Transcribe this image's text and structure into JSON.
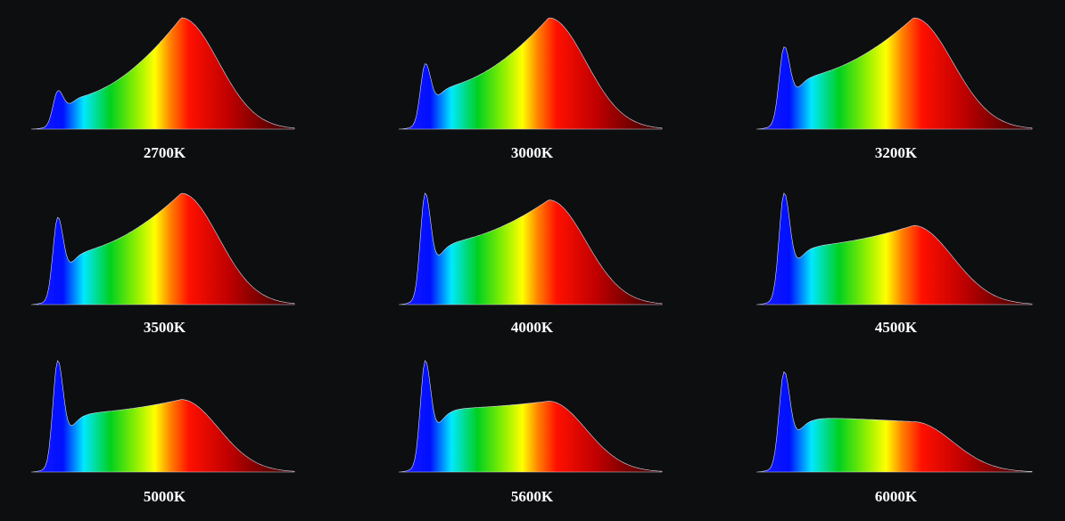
{
  "panels": [
    {
      "label": "2700K"
    },
    {
      "label": "3000K"
    },
    {
      "label": "3200K"
    },
    {
      "label": "3500K"
    },
    {
      "label": "4000K"
    },
    {
      "label": "4500K"
    },
    {
      "label": "5000K"
    },
    {
      "label": "5600K"
    },
    {
      "label": "6000K"
    }
  ]
}
